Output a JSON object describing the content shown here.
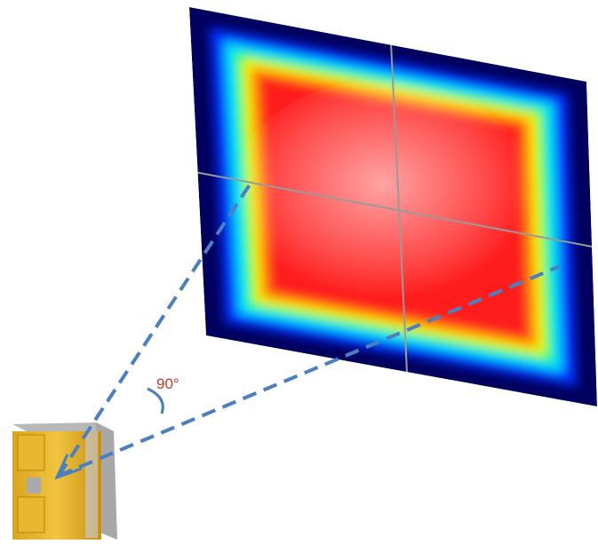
{
  "angle_label": "90°"
}
